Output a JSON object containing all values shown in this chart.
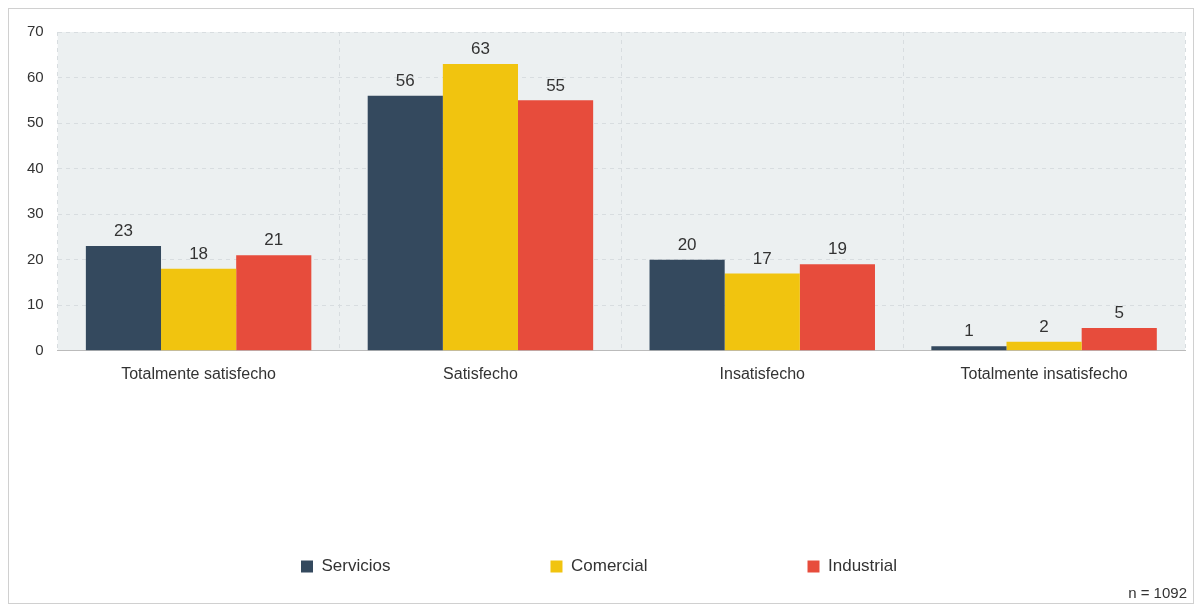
{
  "chart_data": {
    "type": "bar",
    "categories": [
      "Totalmente satisfecho",
      "Satisfecho",
      "Insatisfecho",
      "Totalmente insatisfecho"
    ],
    "series": [
      {
        "name": "Servicios",
        "color": "#34495e",
        "values": [
          23,
          56,
          20,
          1
        ]
      },
      {
        "name": "Comercial",
        "color": "#f1c40f",
        "values": [
          18,
          63,
          17,
          2
        ]
      },
      {
        "name": "Industrial",
        "color": "#e74c3c",
        "values": [
          21,
          55,
          19,
          5
        ]
      }
    ],
    "ylim": [
      0,
      70
    ],
    "yticks": [
      0,
      10,
      20,
      30,
      40,
      50,
      60,
      70
    ],
    "grid": true,
    "legend": "bottom",
    "data_labels": true,
    "annotations": [
      "n = 1092"
    ]
  }
}
